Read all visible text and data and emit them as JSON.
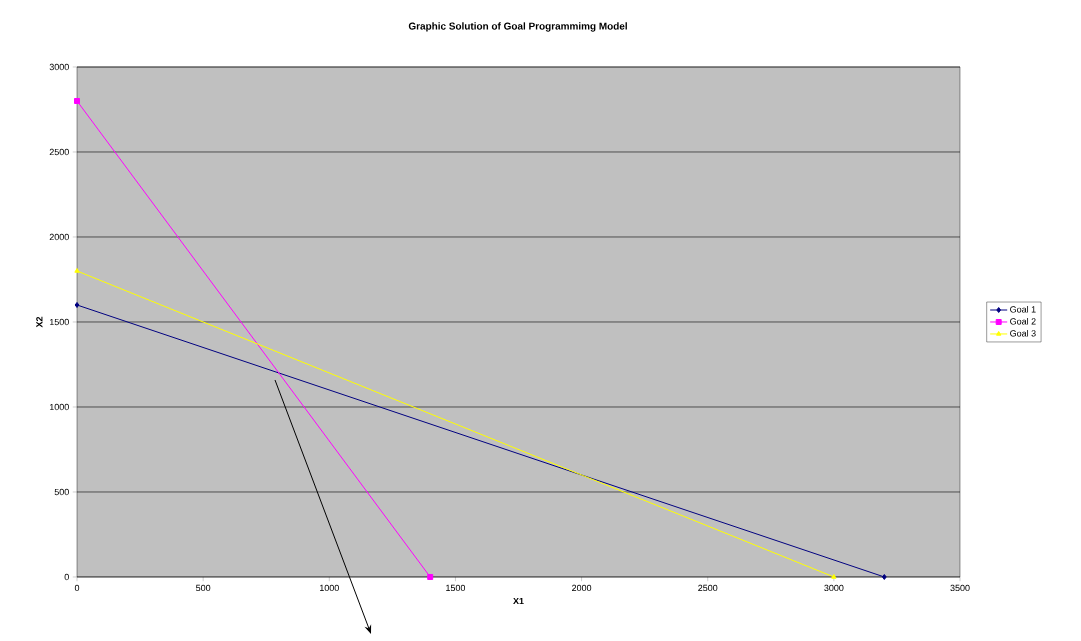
{
  "chart_data": {
    "type": "line",
    "title": "Graphic Solution of Goal Programmimg Model",
    "xlabel": "X1",
    "ylabel": "X2",
    "xlim": [
      0,
      3500
    ],
    "xticks": [
      0,
      500,
      1000,
      1500,
      2000,
      2500,
      3000,
      3500
    ],
    "ylim": [
      0,
      3000
    ],
    "yticks": [
      0,
      500,
      1000,
      1500,
      2000,
      2500,
      3000
    ],
    "grid": "y",
    "legend": "right",
    "line_style": "solid",
    "series": [
      {
        "name": "Goal 1",
        "color": "#000080",
        "marker": "diamond",
        "x": [
          0,
          3200
        ],
        "values": [
          1600,
          0
        ]
      },
      {
        "name": "Goal 2",
        "color": "#ff00ff",
        "marker": "square",
        "x": [
          0,
          1400
        ],
        "values": [
          2800,
          0
        ]
      },
      {
        "name": "Goal 3",
        "color": "#ffff00",
        "marker": "triangle",
        "x": [
          0,
          3000
        ],
        "values": [
          1800,
          0
        ]
      }
    ]
  }
}
